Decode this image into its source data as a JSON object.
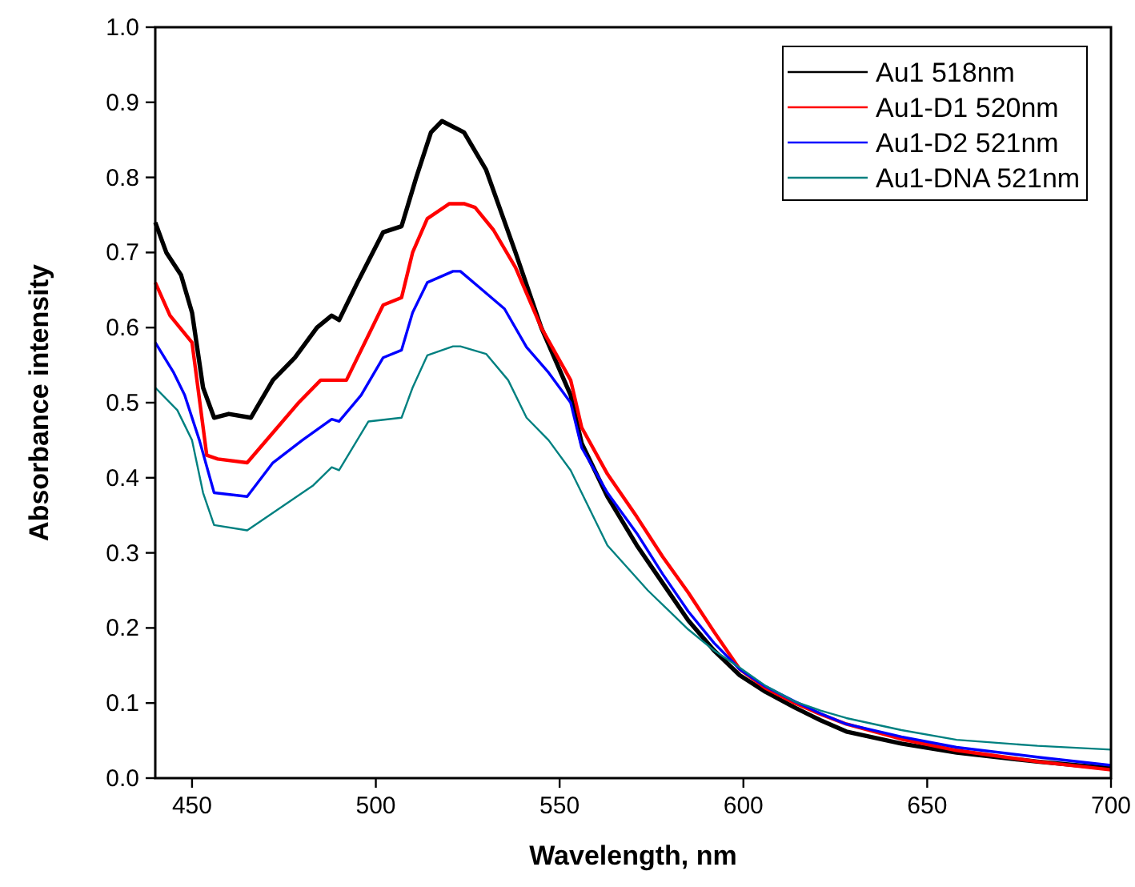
{
  "chart_data": {
    "type": "line",
    "xlabel": "Wavelength, nm",
    "ylabel": "Absorbance intensity",
    "xlim": [
      440,
      700
    ],
    "xticks": [
      450,
      500,
      550,
      600,
      650,
      700
    ],
    "ylim": [
      0,
      1
    ],
    "yticks": [
      {
        "value": 0,
        "label": "0.0"
      },
      {
        "value": 0.1,
        "label": "0.1"
      },
      {
        "value": 0.2,
        "label": "0.2"
      },
      {
        "value": 0.3,
        "label": "0.3"
      },
      {
        "value": 0.4,
        "label": "0.4"
      },
      {
        "value": 0.5,
        "label": "0.5"
      },
      {
        "value": 0.6,
        "label": "0.6"
      },
      {
        "value": 0.7,
        "label": "0.7"
      },
      {
        "value": 0.8,
        "label": "0.8"
      },
      {
        "value": 0.9,
        "label": "0.9"
      },
      {
        "value": 1,
        "label": "1.0"
      }
    ],
    "legend": "top right",
    "grid": false,
    "marker": "none",
    "line_style": "solid",
    "series": [
      {
        "name": "Au1 518nm",
        "color": "#000000",
        "x": [
          440,
          443,
          447,
          450,
          453,
          456,
          460,
          466,
          472,
          478,
          484,
          488,
          490,
          495,
          502,
          507,
          511,
          515,
          518,
          524,
          530,
          538,
          545,
          553,
          556,
          563,
          571,
          578,
          585,
          592,
          599,
          606,
          614,
          621,
          628,
          643,
          658,
          680,
          700
        ],
        "values": [
          0.74,
          0.7,
          0.67,
          0.62,
          0.52,
          0.48,
          0.485,
          0.48,
          0.53,
          0.56,
          0.6,
          0.616,
          0.61,
          0.66,
          0.727,
          0.735,
          0.8,
          0.86,
          0.875,
          0.86,
          0.81,
          0.7,
          0.6,
          0.51,
          0.446,
          0.375,
          0.31,
          0.26,
          0.21,
          0.17,
          0.137,
          0.115,
          0.094,
          0.077,
          0.062,
          0.046,
          0.034,
          0.022,
          0.013
        ]
      },
      {
        "name": "Au1-D1 520nm",
        "color": "#ff0000",
        "x": [
          440,
          444,
          450,
          454,
          457,
          465,
          472,
          479,
          485,
          492,
          497,
          502,
          507,
          510,
          514,
          520,
          524,
          527,
          532,
          538,
          545,
          553,
          556,
          563,
          571,
          578,
          585,
          592,
          599,
          606,
          614,
          621,
          628,
          643,
          658,
          680,
          700
        ],
        "values": [
          0.66,
          0.616,
          0.58,
          0.43,
          0.425,
          0.42,
          0.46,
          0.5,
          0.53,
          0.53,
          0.58,
          0.63,
          0.64,
          0.7,
          0.745,
          0.765,
          0.765,
          0.76,
          0.73,
          0.68,
          0.6,
          0.53,
          0.467,
          0.405,
          0.348,
          0.295,
          0.247,
          0.195,
          0.145,
          0.12,
          0.1,
          0.085,
          0.072,
          0.052,
          0.037,
          0.022,
          0.011
        ]
      },
      {
        "name": "Au1-D2 521nm",
        "color": "#0000ff",
        "x": [
          440,
          445,
          448,
          452,
          456,
          465,
          472,
          480,
          488,
          490,
          496,
          502,
          507,
          510,
          514,
          521,
          523,
          529,
          535,
          541,
          547,
          553,
          556,
          563,
          571,
          578,
          585,
          592,
          599,
          606,
          614,
          621,
          628,
          643,
          658,
          680,
          700
        ],
        "values": [
          0.58,
          0.54,
          0.51,
          0.45,
          0.38,
          0.375,
          0.42,
          0.45,
          0.478,
          0.475,
          0.51,
          0.56,
          0.57,
          0.62,
          0.66,
          0.675,
          0.675,
          0.65,
          0.625,
          0.574,
          0.54,
          0.5,
          0.44,
          0.38,
          0.326,
          0.272,
          0.222,
          0.18,
          0.145,
          0.122,
          0.102,
          0.086,
          0.072,
          0.055,
          0.041,
          0.028,
          0.017
        ]
      },
      {
        "name": "Au1-DNA 521nm",
        "color": "#008080",
        "x": [
          440,
          446,
          450,
          453,
          456,
          465,
          471,
          477,
          483,
          488,
          490,
          498,
          507,
          510,
          514,
          521,
          523,
          530,
          536,
          541,
          547,
          553,
          563,
          574,
          585,
          592,
          599,
          606,
          614,
          621,
          628,
          643,
          658,
          680,
          700
        ],
        "values": [
          0.52,
          0.49,
          0.45,
          0.38,
          0.337,
          0.33,
          0.35,
          0.37,
          0.39,
          0.414,
          0.41,
          0.475,
          0.48,
          0.52,
          0.563,
          0.575,
          0.575,
          0.565,
          0.53,
          0.48,
          0.45,
          0.41,
          0.31,
          0.25,
          0.198,
          0.17,
          0.147,
          0.123,
          0.102,
          0.09,
          0.08,
          0.064,
          0.051,
          0.043,
          0.038
        ]
      }
    ]
  }
}
